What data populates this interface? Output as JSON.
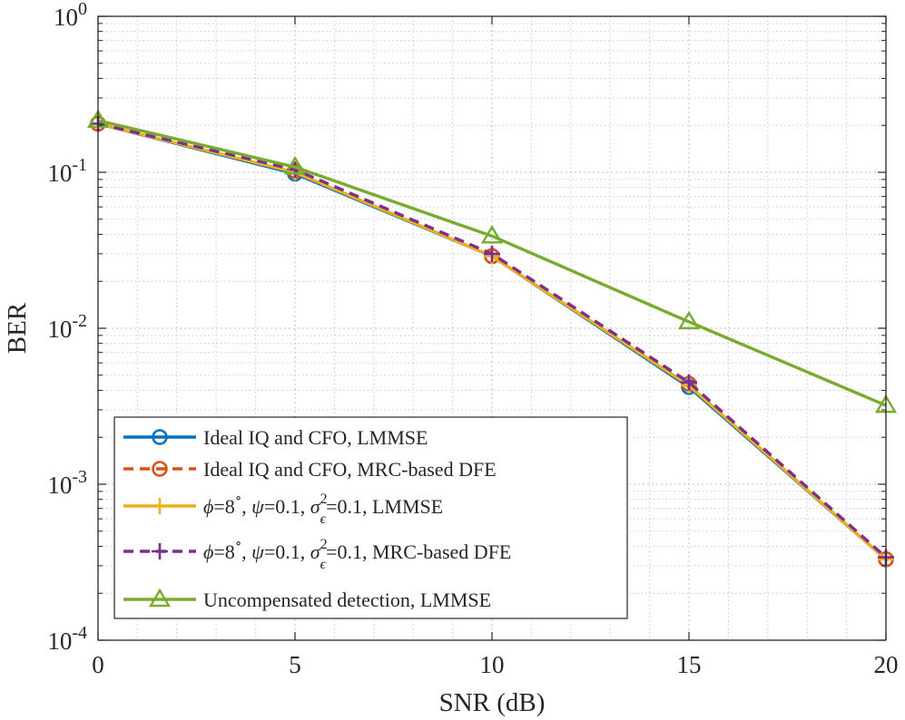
{
  "chart_data": {
    "type": "line",
    "xlabel": "SNR (dB)",
    "ylabel": "BER",
    "x_scale": "linear",
    "y_scale": "log",
    "xlim": [
      0,
      20
    ],
    "ylim": [
      0.0001,
      1
    ],
    "x_ticks": [
      0,
      5,
      10,
      15,
      20
    ],
    "x_tick_labels": [
      "0",
      "5",
      "10",
      "15",
      "20"
    ],
    "y_ticks": [
      0.0001,
      0.001,
      0.01,
      0.1,
      1
    ],
    "y_tick_labels": [
      {
        "base": "10",
        "exp": "-4"
      },
      {
        "base": "10",
        "exp": "-3"
      },
      {
        "base": "10",
        "exp": "-2"
      },
      {
        "base": "10",
        "exp": "-1"
      },
      {
        "base": "10",
        "exp": "0"
      }
    ],
    "grid": true,
    "minor_grid": true,
    "legend_position": "bottom-left",
    "x": [
      0,
      5,
      10,
      15,
      20
    ],
    "series": [
      {
        "name": "Ideal IQ and CFO, LMMSE",
        "values": [
          0.205,
          0.098,
          0.029,
          0.0042,
          0.00033
        ],
        "color": "#0072BD",
        "line_style": "solid",
        "marker": "circle"
      },
      {
        "name": "Ideal IQ and CFO, MRC-based DFE",
        "values": [
          0.205,
          0.102,
          0.029,
          0.0044,
          0.00033
        ],
        "color": "#D95319",
        "line_style": "dashed",
        "marker": "circle"
      },
      {
        "name_parts": [
          "ϕ",
          "=8",
          "∘",
          ", ",
          "ψ",
          "=0.1, ",
          "σ",
          "2",
          "ϵ",
          "=0.1, LMMSE"
        ],
        "values": [
          0.205,
          0.1,
          0.029,
          0.0043,
          0.00033
        ],
        "color": "#EDB120",
        "line_style": "solid",
        "marker": "plus"
      },
      {
        "name_parts": [
          "ϕ",
          "=8",
          "∘",
          ", ",
          "ψ",
          "=0.1, ",
          "σ",
          "2",
          "ϵ",
          "=0.1, MRC-based DFE"
        ],
        "values": [
          0.205,
          0.104,
          0.03,
          0.0045,
          0.00034
        ],
        "color": "#7E2F8E",
        "line_style": "dashed",
        "marker": "plus"
      },
      {
        "name": "Uncompensated detection, LMMSE",
        "values": [
          0.215,
          0.108,
          0.039,
          0.011,
          0.0032
        ],
        "color": "#77AC30",
        "line_style": "solid",
        "marker": "triangle"
      }
    ]
  }
}
